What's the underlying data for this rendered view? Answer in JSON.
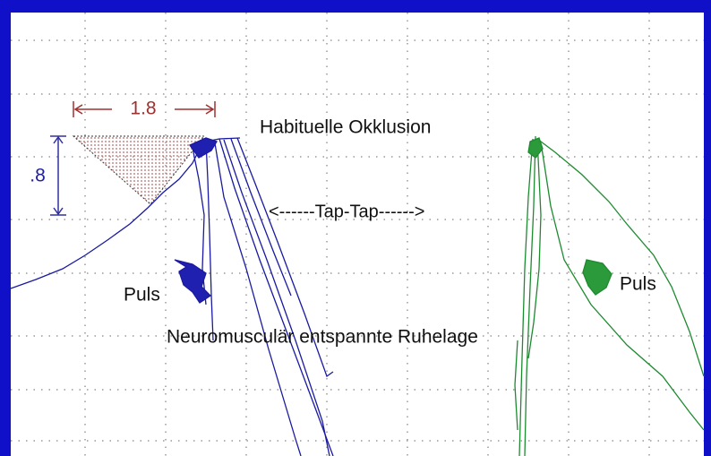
{
  "labels": {
    "width_measure": "1.8",
    "height_measure": ".8",
    "occlusion": "Habituelle Okklusion",
    "tap": "<------Tap-Tap------>",
    "pulse_left": "Puls",
    "pulse_right": "Puls",
    "rest": "Neuromusculär entspannte Ruhelage"
  }
}
